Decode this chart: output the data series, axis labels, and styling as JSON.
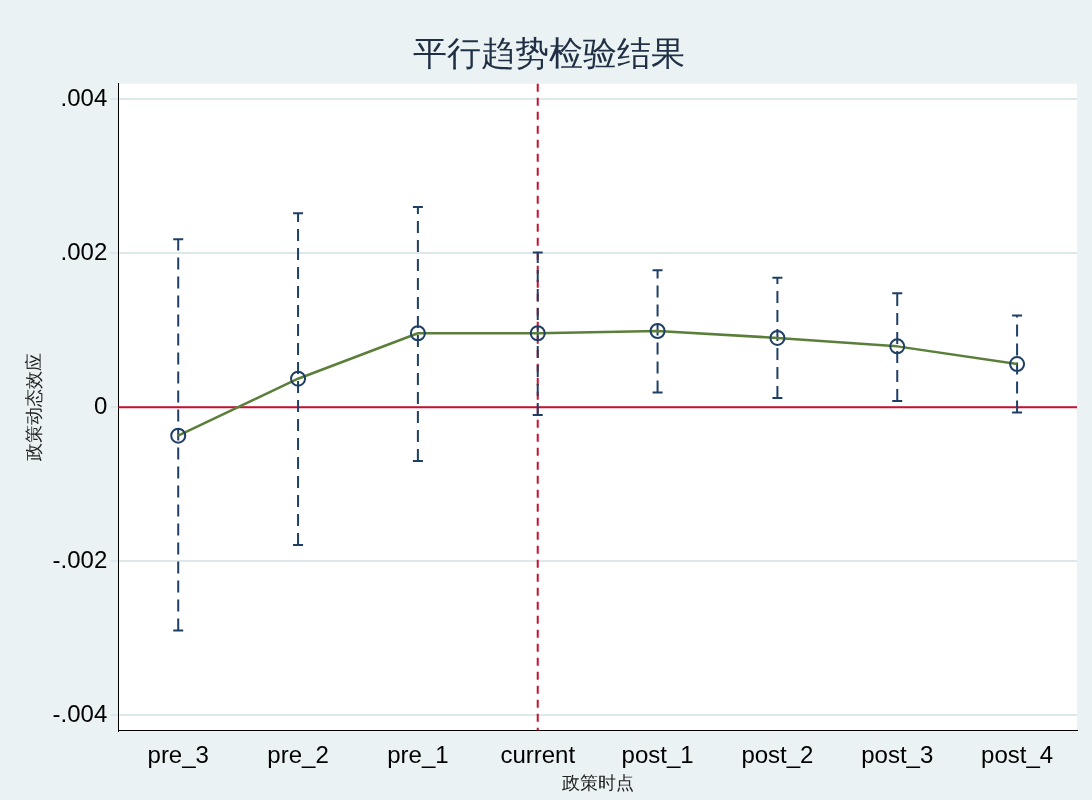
{
  "chart_data": {
    "type": "line",
    "title": "平行趋势检验结果",
    "xlabel": "政策时点",
    "ylabel": "政策动态效应",
    "categories": [
      "pre_3",
      "pre_2",
      "pre_1",
      "current",
      "post_1",
      "post_2",
      "post_3",
      "post_4"
    ],
    "series": [
      {
        "color": "#5b7f3a",
        "values": [
          -0.00037,
          0.00037,
          0.00096,
          0.00096,
          0.00099,
          0.0009,
          0.00079,
          0.00056
        ],
        "errors": [
          [
            -0.0029,
            0.00218
          ],
          [
            -0.00179,
            0.00252
          ],
          [
            -0.0007,
            0.0026
          ],
          [
            -0.0001,
            0.00201
          ],
          [
            0.00019,
            0.00178
          ],
          [
            0.00012,
            0.00168
          ],
          [
            8e-05,
            0.00148
          ],
          [
            -7e-05,
            0.00119
          ]
        ]
      }
    ],
    "ylim": [
      -0.0042,
      0.0042
    ],
    "yticks": [
      {
        "value": -0.004,
        "label": "-.004"
      },
      {
        "value": -0.002,
        "label": "-.002"
      },
      {
        "value": 0,
        "label": "0"
      },
      {
        "value": 0.002,
        "label": ".002"
      },
      {
        "value": 0.004,
        "label": ".004"
      }
    ],
    "ref_lines": [
      {
        "axis": "x",
        "value": "current",
        "color": "#c8102e",
        "line_style": "dashed"
      },
      {
        "axis": "y",
        "value": 0,
        "color": "#c8102e",
        "line_style": "solid"
      }
    ],
    "grid": "y",
    "legend": false,
    "marker": "circle",
    "line_style": "solid"
  }
}
